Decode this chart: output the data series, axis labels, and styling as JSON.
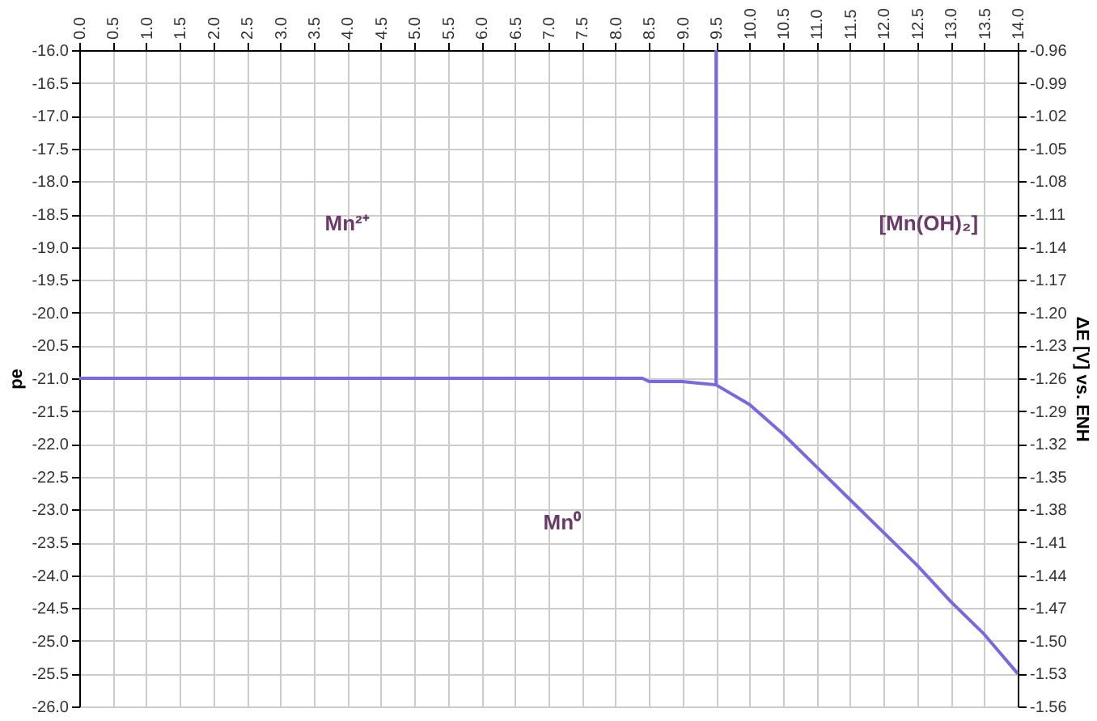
{
  "chart_data": {
    "type": "line",
    "ylabel": "pe",
    "y2label": "ΔE [V] vs. ENH",
    "xlim": [
      0,
      14
    ],
    "ylim": [
      -26,
      -16
    ],
    "y2lim": [
      -1.56,
      -0.96
    ],
    "xticks": [
      {
        "value": 0,
        "label": "0.0"
      },
      0.5,
      {
        "value": 1,
        "label": "1.0"
      },
      1.5,
      {
        "value": 2,
        "label": "2.0"
      },
      2.5,
      {
        "value": 3,
        "label": "3.0"
      },
      3.5,
      {
        "value": 4,
        "label": "4.0"
      },
      4.5,
      {
        "value": 5,
        "label": "5.0"
      },
      5.5,
      {
        "value": 6,
        "label": "6.0"
      },
      6.5,
      {
        "value": 7,
        "label": "7.0"
      },
      7.5,
      {
        "value": 8,
        "label": "8.0"
      },
      8.5,
      {
        "value": 9,
        "label": "9.0"
      },
      9.5,
      {
        "value": 10,
        "label": "10.0"
      },
      10.5,
      {
        "value": 11,
        "label": "11.0"
      },
      11.5,
      {
        "value": 12,
        "label": "12.0"
      },
      12.5,
      {
        "value": 13,
        "label": "13.0"
      },
      13.5,
      {
        "value": 14,
        "label": "14.0"
      }
    ],
    "yticks": [
      {
        "value": -16,
        "label": "-16.0"
      },
      -16.5,
      {
        "value": -17,
        "label": "-17.0"
      },
      -17.5,
      {
        "value": -18,
        "label": "-18.0"
      },
      -18.5,
      {
        "value": -19,
        "label": "-19.0"
      },
      -19.5,
      {
        "value": -20,
        "label": "-20.0"
      },
      -20.5,
      {
        "value": -21,
        "label": "-21.0"
      },
      -21.5,
      {
        "value": -22,
        "label": "-22.0"
      },
      -22.5,
      {
        "value": -23,
        "label": "-23.0"
      },
      -23.5,
      {
        "value": -24,
        "label": "-24.0"
      },
      -24.5,
      {
        "value": -25,
        "label": "-25.0"
      },
      -25.5,
      {
        "value": -26,
        "label": "-26.0"
      }
    ],
    "y2ticks": [
      -0.96,
      -0.99,
      -1.02,
      -1.05,
      -1.08,
      -1.11,
      -1.14,
      -1.17,
      {
        "value": -1.2,
        "label": "-1.20"
      },
      -1.23,
      -1.26,
      -1.29,
      -1.32,
      -1.35,
      -1.38,
      -1.41,
      -1.44,
      -1.47,
      {
        "value": -1.5,
        "label": "-1.50"
      },
      -1.53,
      -1.56
    ],
    "grid": true,
    "legend": false,
    "marker": "none",
    "line_style": "solid",
    "series": [
      {
        "color": "#7b68e0",
        "x": [
          0,
          8.4,
          8.5,
          9.0,
          9.2,
          9.5,
          10,
          10.5,
          11,
          11.5,
          12,
          12.5,
          13,
          13.5,
          14
        ],
        "values": [
          -21,
          -21,
          -21.05,
          -21.05,
          -21.07,
          -21.1,
          -21.4,
          -21.85,
          -22.35,
          -22.85,
          -23.35,
          -23.85,
          -24.4,
          -24.9,
          -25.5
        ]
      },
      {
        "color": "#7b68e0",
        "x": [
          9.5,
          9.5
        ],
        "values": [
          -16,
          -21.1
        ]
      }
    ],
    "annotations": [
      "Mn²⁺",
      "[Mn(OH)₂]",
      "Mn⁰"
    ]
  }
}
